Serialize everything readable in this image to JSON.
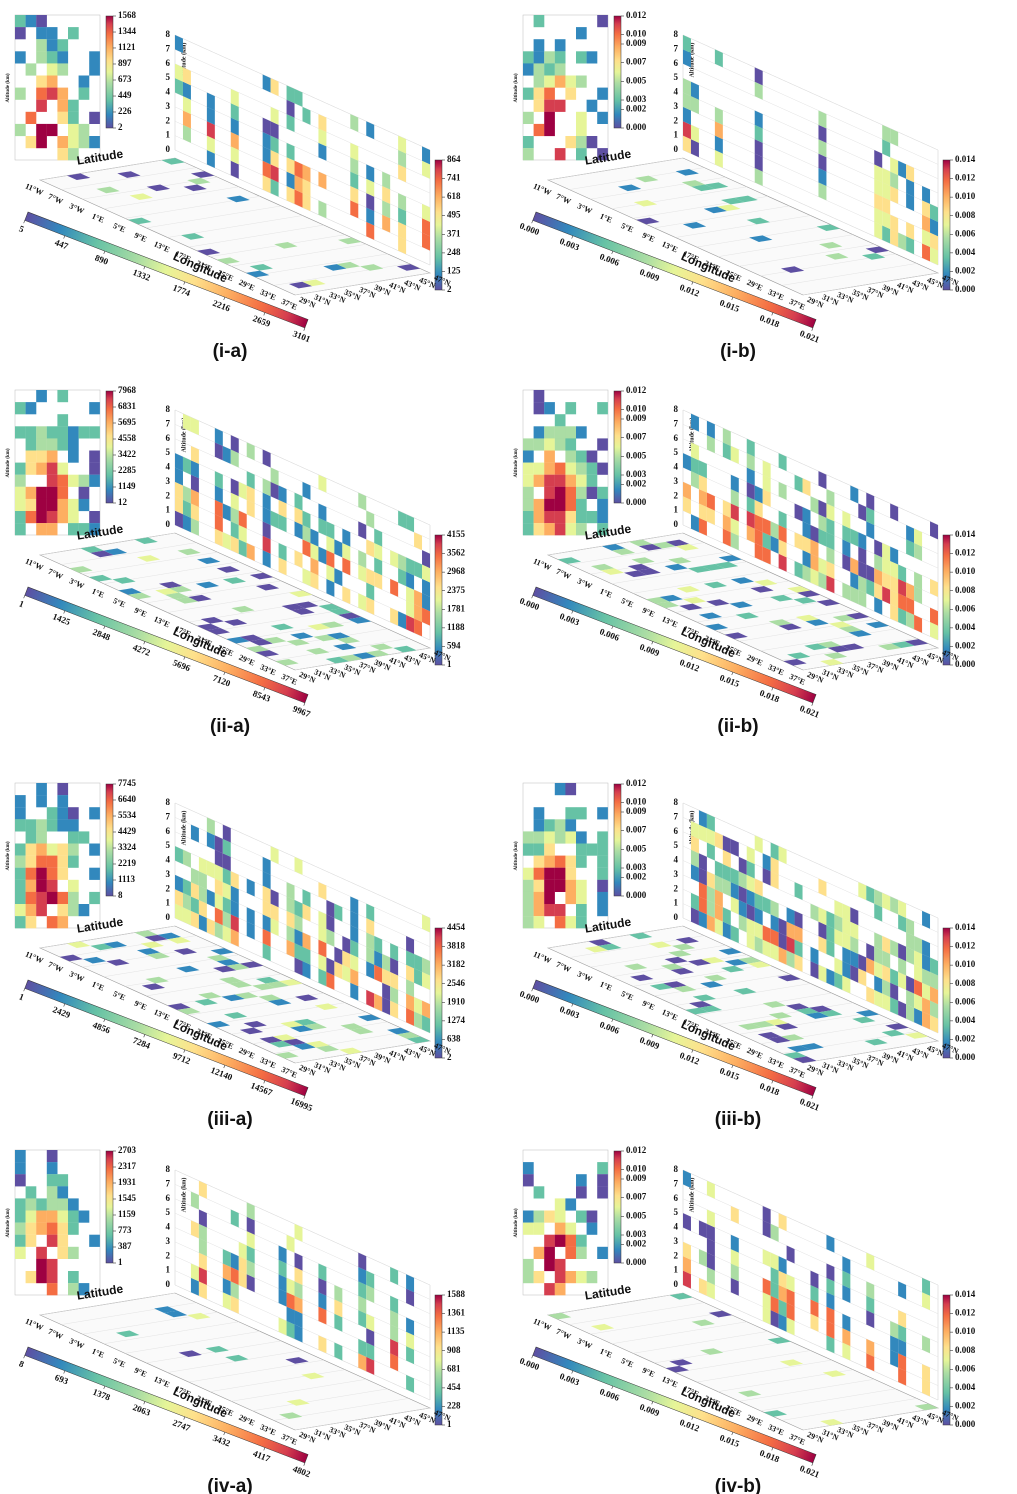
{
  "common": {
    "altitude_label": "Altitude (km)",
    "latitude_label": "Latitude",
    "longitude_label": "Longitude",
    "altitude_ticks": [
      0,
      1,
      2,
      3,
      4,
      5,
      6,
      7,
      8
    ],
    "lon_ticks": [
      "11°W",
      "7°W",
      "3°W",
      "1°E",
      "5°E",
      "9°E",
      "13°E",
      "17°E",
      "21°E",
      "25°E",
      "29°E",
      "33°E",
      "37°E"
    ],
    "lat_ticks": [
      "29°N",
      "31°N",
      "33°N",
      "35°N",
      "37°N",
      "39°N",
      "41°N",
      "43°N",
      "45°N",
      "47°N"
    ]
  },
  "panels": [
    {
      "label": "(i-a)",
      "lat_colorbar_ticks": [
        2,
        226,
        449,
        673,
        897,
        1121,
        1344,
        1568
      ],
      "lon_colorbar_ticks": [
        2,
        125,
        248,
        371,
        495,
        618,
        741,
        864
      ],
      "map_colorbar_ticks": [
        5,
        447,
        890,
        1332,
        1774,
        2216,
        2659,
        3101
      ]
    },
    {
      "label": "(i-b)",
      "lat_colorbar_ticks": [
        {
          "value": 0,
          "label": "0.000"
        },
        {
          "value": 0.002,
          "label": "0.002"
        },
        {
          "value": 0.003,
          "label": "0.003"
        },
        {
          "value": 0.005,
          "label": "0.005"
        },
        {
          "value": 0.007,
          "label": "0.007"
        },
        {
          "value": 0.009,
          "label": "0.009"
        },
        {
          "value": 0.01,
          "label": "0.010"
        },
        {
          "value": 0.012,
          "label": "0.012"
        }
      ],
      "lon_colorbar_ticks": [
        {
          "value": 0,
          "label": "0.000"
        },
        {
          "value": 0.002,
          "label": "0.002"
        },
        {
          "value": 0.004,
          "label": "0.004"
        },
        {
          "value": 0.006,
          "label": "0.006"
        },
        {
          "value": 0.008,
          "label": "0.008"
        },
        {
          "value": 0.01,
          "label": "0.010"
        },
        {
          "value": 0.012,
          "label": "0.012"
        },
        {
          "value": 0.014,
          "label": "0.014"
        }
      ],
      "map_colorbar_ticks": [
        {
          "value": 0,
          "label": "0.000"
        },
        {
          "value": 0.003,
          "label": "0.003"
        },
        {
          "value": 0.006,
          "label": "0.006"
        },
        {
          "value": 0.009,
          "label": "0.009"
        },
        {
          "value": 0.012,
          "label": "0.012"
        },
        {
          "value": 0.015,
          "label": "0.015"
        },
        {
          "value": 0.018,
          "label": "0.018"
        },
        {
          "value": 0.021,
          "label": "0.021"
        }
      ]
    },
    {
      "label": "(ii-a)",
      "lat_colorbar_ticks": [
        12,
        1149,
        2285,
        3422,
        4558,
        5695,
        6831,
        7968
      ],
      "lon_colorbar_ticks": [
        1,
        594,
        1188,
        1781,
        2375,
        2968,
        3562,
        4155
      ],
      "map_colorbar_ticks": [
        1,
        1425,
        2848,
        4272,
        5696,
        7120,
        8543,
        9967
      ]
    },
    {
      "label": "(ii-b)",
      "lat_colorbar_ticks": [
        {
          "value": 0,
          "label": "0.000"
        },
        {
          "value": 0.002,
          "label": "0.002"
        },
        {
          "value": 0.003,
          "label": "0.003"
        },
        {
          "value": 0.005,
          "label": "0.005"
        },
        {
          "value": 0.007,
          "label": "0.007"
        },
        {
          "value": 0.009,
          "label": "0.009"
        },
        {
          "value": 0.01,
          "label": "0.010"
        },
        {
          "value": 0.012,
          "label": "0.012"
        }
      ],
      "lon_colorbar_ticks": [
        {
          "value": 0,
          "label": "0.000"
        },
        {
          "value": 0.002,
          "label": "0.002"
        },
        {
          "value": 0.004,
          "label": "0.004"
        },
        {
          "value": 0.006,
          "label": "0.006"
        },
        {
          "value": 0.008,
          "label": "0.008"
        },
        {
          "value": 0.01,
          "label": "0.010"
        },
        {
          "value": 0.012,
          "label": "0.012"
        },
        {
          "value": 0.014,
          "label": "0.014"
        }
      ],
      "map_colorbar_ticks": [
        {
          "value": 0,
          "label": "0.000"
        },
        {
          "value": 0.003,
          "label": "0.003"
        },
        {
          "value": 0.006,
          "label": "0.006"
        },
        {
          "value": 0.009,
          "label": "0.009"
        },
        {
          "value": 0.012,
          "label": "0.012"
        },
        {
          "value": 0.015,
          "label": "0.015"
        },
        {
          "value": 0.018,
          "label": "0.018"
        },
        {
          "value": 0.021,
          "label": "0.021"
        }
      ]
    },
    {
      "label": "(iii-a)",
      "lat_colorbar_ticks": [
        8,
        1113,
        2219,
        3324,
        4429,
        5534,
        6640,
        7745
      ],
      "lon_colorbar_ticks": [
        2,
        638,
        1274,
        1910,
        2546,
        3182,
        3818,
        4454
      ],
      "map_colorbar_ticks": [
        1,
        2429,
        4856,
        7284,
        9712,
        12140,
        14567,
        16995
      ]
    },
    {
      "label": "(iii-b)",
      "lat_colorbar_ticks": [
        {
          "value": 0,
          "label": "0.000"
        },
        {
          "value": 0.002,
          "label": "0.002"
        },
        {
          "value": 0.003,
          "label": "0.003"
        },
        {
          "value": 0.005,
          "label": "0.005"
        },
        {
          "value": 0.007,
          "label": "0.007"
        },
        {
          "value": 0.009,
          "label": "0.009"
        },
        {
          "value": 0.01,
          "label": "0.010"
        },
        {
          "value": 0.012,
          "label": "0.012"
        }
      ],
      "lon_colorbar_ticks": [
        {
          "value": 0,
          "label": "0.000"
        },
        {
          "value": 0.002,
          "label": "0.002"
        },
        {
          "value": 0.004,
          "label": "0.004"
        },
        {
          "value": 0.006,
          "label": "0.006"
        },
        {
          "value": 0.008,
          "label": "0.008"
        },
        {
          "value": 0.01,
          "label": "0.010"
        },
        {
          "value": 0.012,
          "label": "0.012"
        },
        {
          "value": 0.014,
          "label": "0.014"
        }
      ],
      "map_colorbar_ticks": [
        {
          "value": 0,
          "label": "0.000"
        },
        {
          "value": 0.003,
          "label": "0.003"
        },
        {
          "value": 0.006,
          "label": "0.006"
        },
        {
          "value": 0.009,
          "label": "0.009"
        },
        {
          "value": 0.012,
          "label": "0.012"
        },
        {
          "value": 0.015,
          "label": "0.015"
        },
        {
          "value": 0.018,
          "label": "0.018"
        },
        {
          "value": 0.021,
          "label": "0.021"
        }
      ]
    },
    {
      "label": "(iv-a)",
      "lat_colorbar_ticks": [
        1,
        387,
        773,
        1159,
        1545,
        1931,
        2317,
        2703
      ],
      "lon_colorbar_ticks": [
        1,
        228,
        454,
        681,
        908,
        1135,
        1361,
        1588
      ],
      "map_colorbar_ticks": [
        8,
        693,
        1378,
        2063,
        2747,
        3432,
        4117,
        4802
      ]
    },
    {
      "label": "(iv-b)",
      "lat_colorbar_ticks": [
        {
          "value": 0,
          "label": "0.000"
        },
        {
          "value": 0.002,
          "label": "0.002"
        },
        {
          "value": 0.003,
          "label": "0.003"
        },
        {
          "value": 0.005,
          "label": "0.005"
        },
        {
          "value": 0.007,
          "label": "0.007"
        },
        {
          "value": 0.009,
          "label": "0.009"
        },
        {
          "value": 0.01,
          "label": "0.010"
        },
        {
          "value": 0.012,
          "label": "0.012"
        }
      ],
      "lon_colorbar_ticks": [
        {
          "value": 0,
          "label": "0.000"
        },
        {
          "value": 0.002,
          "label": "0.002"
        },
        {
          "value": 0.004,
          "label": "0.004"
        },
        {
          "value": 0.006,
          "label": "0.006"
        },
        {
          "value": 0.008,
          "label": "0.008"
        },
        {
          "value": 0.01,
          "label": "0.010"
        },
        {
          "value": 0.012,
          "label": "0.012"
        },
        {
          "value": 0.014,
          "label": "0.014"
        }
      ],
      "map_colorbar_ticks": [
        {
          "value": 0,
          "label": "0.000"
        },
        {
          "value": 0.003,
          "label": "0.003"
        },
        {
          "value": 0.006,
          "label": "0.006"
        },
        {
          "value": 0.009,
          "label": "0.009"
        },
        {
          "value": 0.012,
          "label": "0.012"
        },
        {
          "value": 0.015,
          "label": "0.015"
        },
        {
          "value": 0.018,
          "label": "0.018"
        },
        {
          "value": 0.021,
          "label": "0.021"
        }
      ]
    }
  ]
}
